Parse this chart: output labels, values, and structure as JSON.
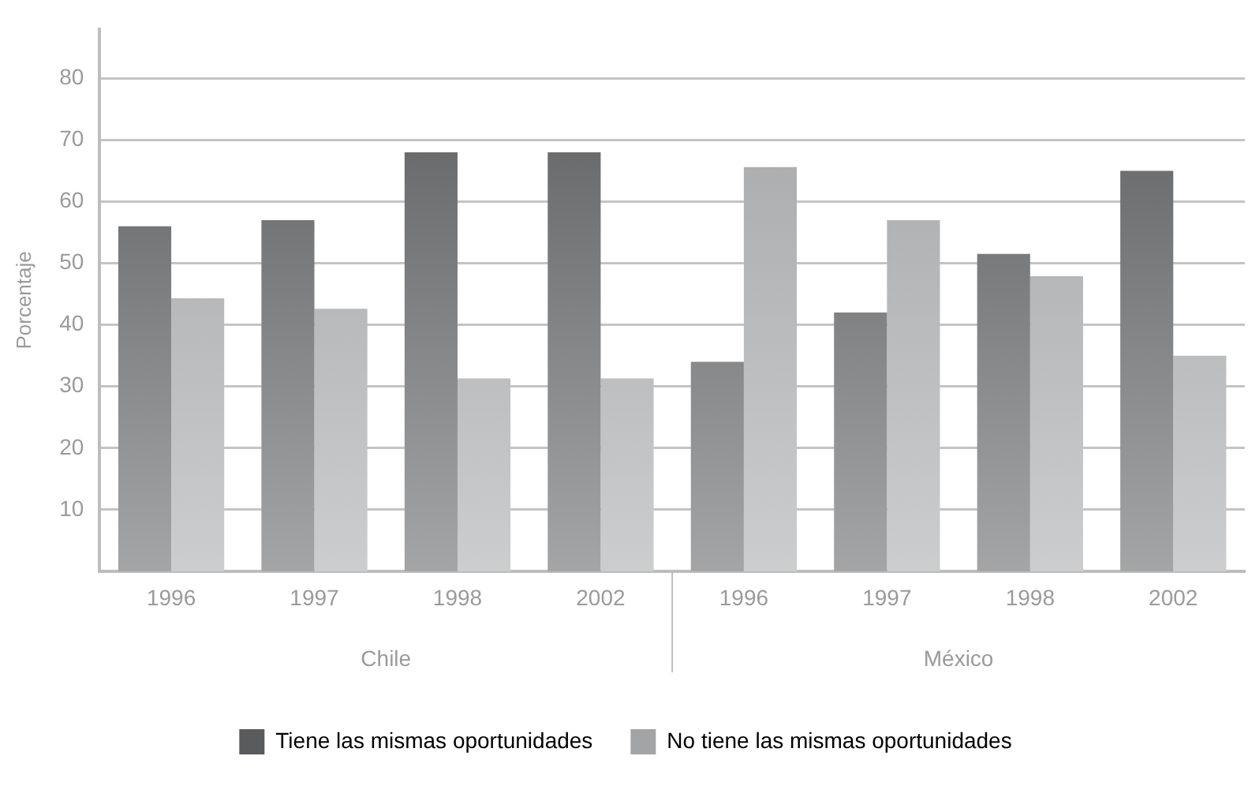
{
  "chart_data": {
    "type": "bar",
    "ylabel": "Porcentaje",
    "categories": [
      "1996",
      "1997",
      "1998",
      "2002",
      "1996",
      "1997",
      "1998",
      "2002"
    ],
    "series": [
      {
        "name": "Tiene las mismas oportunidades",
        "color": "#5a5b5d",
        "values": [
          56,
          57,
          68,
          68,
          34,
          42,
          51.5,
          65
        ]
      },
      {
        "name": "No tiene las mismas oportunidades",
        "color": "#a3a4a6",
        "values": [
          44.3,
          42.6,
          31.3,
          31.3,
          65.6,
          57,
          47.9,
          35
        ]
      }
    ],
    "annotations": [
      "Chile",
      "México"
    ],
    "ylim": [
      0,
      88
    ],
    "yticks": [
      10,
      20,
      30,
      40,
      50,
      60,
      70,
      80
    ],
    "grid": "y",
    "legend": "bottom"
  }
}
